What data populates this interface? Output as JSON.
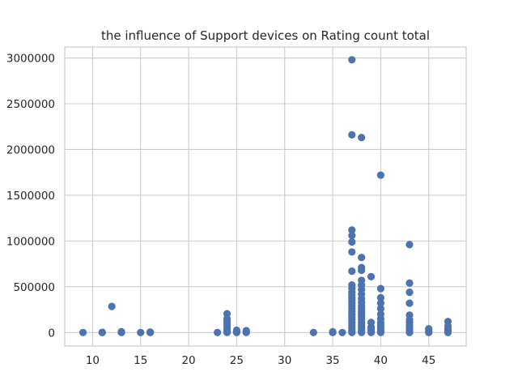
{
  "chart_data": {
    "type": "scatter",
    "title": "the influence of Support devices on Rating count total",
    "xlabel": "",
    "ylabel": "",
    "xlim": [
      7.1,
      48.9
    ],
    "ylim": [
      -148000,
      3120000
    ],
    "xticks": [
      10,
      15,
      20,
      25,
      30,
      35,
      40,
      45
    ],
    "yticks": [
      0,
      500000,
      1000000,
      1500000,
      2000000,
      2500000,
      3000000
    ],
    "grid": true,
    "marker_color": "#4c72b0",
    "points": [
      [
        9,
        0
      ],
      [
        11,
        0
      ],
      [
        11,
        2000
      ],
      [
        12,
        285000
      ],
      [
        13,
        0
      ],
      [
        13,
        3000
      ],
      [
        13,
        8000
      ],
      [
        15,
        0
      ],
      [
        16,
        0
      ],
      [
        16,
        2000
      ],
      [
        16,
        5000
      ],
      [
        23,
        0
      ],
      [
        24,
        0
      ],
      [
        24,
        10000
      ],
      [
        24,
        30000
      ],
      [
        24,
        60000
      ],
      [
        24,
        90000
      ],
      [
        24,
        120000
      ],
      [
        24,
        150000
      ],
      [
        24,
        205000
      ],
      [
        25,
        0
      ],
      [
        25,
        10000
      ],
      [
        25,
        25000
      ],
      [
        26,
        0
      ],
      [
        26,
        8000
      ],
      [
        26,
        20000
      ],
      [
        33,
        0
      ],
      [
        35,
        0
      ],
      [
        35,
        3000
      ],
      [
        35,
        8000
      ],
      [
        36,
        0
      ],
      [
        37,
        0
      ],
      [
        37,
        20000
      ],
      [
        37,
        50000
      ],
      [
        37,
        80000
      ],
      [
        37,
        110000
      ],
      [
        37,
        140000
      ],
      [
        37,
        170000
      ],
      [
        37,
        200000
      ],
      [
        37,
        230000
      ],
      [
        37,
        260000
      ],
      [
        37,
        290000
      ],
      [
        37,
        320000
      ],
      [
        37,
        350000
      ],
      [
        37,
        380000
      ],
      [
        37,
        410000
      ],
      [
        37,
        440000
      ],
      [
        37,
        480000
      ],
      [
        37,
        520000
      ],
      [
        37,
        670000
      ],
      [
        37,
        880000
      ],
      [
        37,
        990000
      ],
      [
        37,
        1060000
      ],
      [
        37,
        1120000
      ],
      [
        37,
        2160000
      ],
      [
        37,
        2980000
      ],
      [
        38,
        0
      ],
      [
        38,
        20000
      ],
      [
        38,
        50000
      ],
      [
        38,
        80000
      ],
      [
        38,
        110000
      ],
      [
        38,
        140000
      ],
      [
        38,
        170000
      ],
      [
        38,
        200000
      ],
      [
        38,
        230000
      ],
      [
        38,
        260000
      ],
      [
        38,
        290000
      ],
      [
        38,
        330000
      ],
      [
        38,
        370000
      ],
      [
        38,
        420000
      ],
      [
        38,
        470000
      ],
      [
        38,
        520000
      ],
      [
        38,
        570000
      ],
      [
        38,
        680000
      ],
      [
        38,
        710000
      ],
      [
        38,
        820000
      ],
      [
        38,
        2130000
      ],
      [
        39,
        0
      ],
      [
        39,
        30000
      ],
      [
        39,
        60000
      ],
      [
        39,
        110000
      ],
      [
        39,
        610000
      ],
      [
        40,
        0
      ],
      [
        40,
        20000
      ],
      [
        40,
        50000
      ],
      [
        40,
        80000
      ],
      [
        40,
        110000
      ],
      [
        40,
        150000
      ],
      [
        40,
        200000
      ],
      [
        40,
        260000
      ],
      [
        40,
        320000
      ],
      [
        40,
        380000
      ],
      [
        40,
        480000
      ],
      [
        40,
        1720000
      ],
      [
        43,
        0
      ],
      [
        43,
        20000
      ],
      [
        43,
        50000
      ],
      [
        43,
        80000
      ],
      [
        43,
        110000
      ],
      [
        43,
        140000
      ],
      [
        43,
        190000
      ],
      [
        43,
        320000
      ],
      [
        43,
        440000
      ],
      [
        43,
        540000
      ],
      [
        43,
        960000
      ],
      [
        45,
        0
      ],
      [
        45,
        15000
      ],
      [
        45,
        40000
      ],
      [
        47,
        0
      ],
      [
        47,
        15000
      ],
      [
        47,
        40000
      ],
      [
        47,
        70000
      ],
      [
        47,
        120000
      ]
    ]
  }
}
